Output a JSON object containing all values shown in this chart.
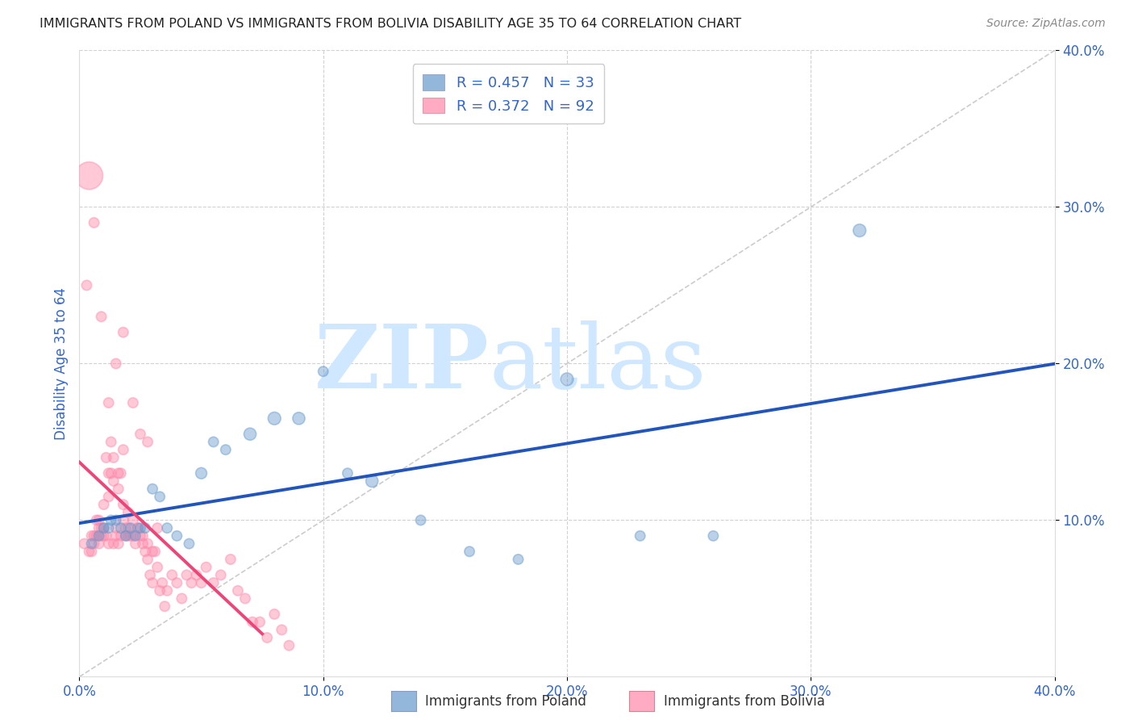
{
  "title": "IMMIGRANTS FROM POLAND VS IMMIGRANTS FROM BOLIVIA DISABILITY AGE 35 TO 64 CORRELATION CHART",
  "source": "Source: ZipAtlas.com",
  "ylabel": "Disability Age 35 to 64",
  "xlim": [
    0.0,
    0.4
  ],
  "ylim": [
    0.0,
    0.4
  ],
  "xtick_labels": [
    "0.0%",
    "10.0%",
    "20.0%",
    "30.0%",
    "40.0%"
  ],
  "xtick_vals": [
    0.0,
    0.1,
    0.2,
    0.3,
    0.4
  ],
  "ytick_labels": [
    "10.0%",
    "20.0%",
    "30.0%",
    "40.0%"
  ],
  "ytick_vals": [
    0.1,
    0.2,
    0.3,
    0.4
  ],
  "poland_color": "#6699CC",
  "bolivia_color": "#FF88AA",
  "poland_line_color": "#2255BB",
  "bolivia_line_color": "#EE4477",
  "diagonal_color": "#CCCCCC",
  "watermark_zip": "ZIP",
  "watermark_atlas": "atlas",
  "watermark_color": "#D0E8FF",
  "legend_R_poland": "R = 0.457",
  "legend_N_poland": "N = 33",
  "legend_R_bolivia": "R = 0.372",
  "legend_N_bolivia": "N = 92",
  "poland_scatter_x": [
    0.005,
    0.008,
    0.01,
    0.012,
    0.013,
    0.015,
    0.017,
    0.019,
    0.021,
    0.023,
    0.025,
    0.027,
    0.03,
    0.033,
    0.036,
    0.04,
    0.045,
    0.05,
    0.055,
    0.06,
    0.07,
    0.08,
    0.09,
    0.1,
    0.11,
    0.12,
    0.14,
    0.16,
    0.18,
    0.2,
    0.23,
    0.26,
    0.32
  ],
  "poland_scatter_y": [
    0.085,
    0.09,
    0.095,
    0.095,
    0.1,
    0.1,
    0.095,
    0.09,
    0.095,
    0.09,
    0.095,
    0.095,
    0.12,
    0.115,
    0.095,
    0.09,
    0.085,
    0.13,
    0.15,
    0.145,
    0.155,
    0.165,
    0.165,
    0.195,
    0.13,
    0.125,
    0.1,
    0.08,
    0.075,
    0.19,
    0.09,
    0.09,
    0.285
  ],
  "poland_scatter_s": [
    80,
    80,
    80,
    80,
    80,
    80,
    80,
    80,
    80,
    80,
    80,
    80,
    80,
    80,
    80,
    80,
    80,
    100,
    80,
    80,
    120,
    130,
    120,
    80,
    80,
    120,
    80,
    80,
    80,
    130,
    80,
    80,
    130
  ],
  "bolivia_scatter_x": [
    0.002,
    0.003,
    0.004,
    0.005,
    0.005,
    0.006,
    0.006,
    0.007,
    0.007,
    0.008,
    0.008,
    0.009,
    0.009,
    0.01,
    0.01,
    0.011,
    0.011,
    0.012,
    0.012,
    0.013,
    0.013,
    0.014,
    0.014,
    0.015,
    0.015,
    0.016,
    0.016,
    0.017,
    0.017,
    0.018,
    0.018,
    0.019,
    0.019,
    0.02,
    0.02,
    0.021,
    0.022,
    0.023,
    0.024,
    0.025,
    0.026,
    0.027,
    0.028,
    0.029,
    0.03,
    0.031,
    0.032,
    0.033,
    0.034,
    0.035,
    0.036,
    0.038,
    0.04,
    0.042,
    0.044,
    0.046,
    0.048,
    0.05,
    0.052,
    0.055,
    0.058,
    0.062,
    0.065,
    0.068,
    0.071,
    0.074,
    0.077,
    0.08,
    0.083,
    0.086,
    0.008,
    0.01,
    0.012,
    0.014,
    0.016,
    0.018,
    0.02,
    0.022,
    0.024,
    0.026,
    0.028,
    0.03,
    0.004,
    0.006,
    0.009,
    0.012,
    0.015,
    0.018,
    0.022,
    0.025,
    0.028,
    0.032
  ],
  "bolivia_scatter_y": [
    0.085,
    0.25,
    0.08,
    0.08,
    0.09,
    0.085,
    0.09,
    0.1,
    0.09,
    0.085,
    0.095,
    0.09,
    0.095,
    0.09,
    0.095,
    0.09,
    0.14,
    0.13,
    0.085,
    0.13,
    0.15,
    0.14,
    0.085,
    0.095,
    0.09,
    0.085,
    0.12,
    0.13,
    0.09,
    0.11,
    0.1,
    0.095,
    0.09,
    0.095,
    0.09,
    0.09,
    0.09,
    0.085,
    0.095,
    0.09,
    0.085,
    0.08,
    0.075,
    0.065,
    0.06,
    0.08,
    0.07,
    0.055,
    0.06,
    0.045,
    0.055,
    0.065,
    0.06,
    0.05,
    0.065,
    0.06,
    0.065,
    0.06,
    0.07,
    0.06,
    0.065,
    0.075,
    0.055,
    0.05,
    0.035,
    0.035,
    0.025,
    0.04,
    0.03,
    0.02,
    0.1,
    0.11,
    0.115,
    0.125,
    0.13,
    0.145,
    0.105,
    0.1,
    0.095,
    0.09,
    0.085,
    0.08,
    0.32,
    0.29,
    0.23,
    0.175,
    0.2,
    0.22,
    0.175,
    0.155,
    0.15,
    0.095
  ],
  "bolivia_scatter_s": [
    80,
    80,
    80,
    80,
    80,
    80,
    80,
    80,
    80,
    80,
    80,
    80,
    80,
    80,
    80,
    80,
    80,
    80,
    80,
    80,
    80,
    80,
    80,
    80,
    80,
    80,
    80,
    80,
    80,
    80,
    80,
    80,
    80,
    80,
    80,
    80,
    80,
    80,
    80,
    80,
    80,
    80,
    80,
    80,
    80,
    80,
    80,
    80,
    80,
    80,
    80,
    80,
    80,
    80,
    80,
    80,
    80,
    80,
    80,
    80,
    80,
    80,
    80,
    80,
    80,
    80,
    80,
    80,
    80,
    80,
    80,
    80,
    80,
    80,
    80,
    80,
    80,
    80,
    80,
    80,
    80,
    80,
    600,
    80,
    80,
    80,
    80,
    80,
    80,
    80,
    80,
    80
  ],
  "bolivia_line_x": [
    0.0,
    0.075
  ],
  "poland_line_x": [
    0.0,
    0.4
  ]
}
